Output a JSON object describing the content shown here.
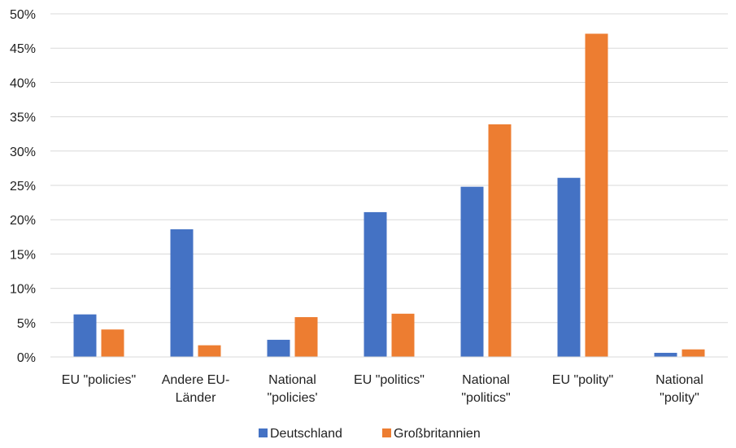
{
  "chart_data": {
    "type": "bar",
    "categories": [
      [
        "EU \"policies\""
      ],
      [
        "Andere EU-",
        "Länder"
      ],
      [
        "National",
        "\"policies'"
      ],
      [
        "EU \"politics\""
      ],
      [
        "National",
        "\"politics\""
      ],
      [
        "EU \"polity\""
      ],
      [
        "National",
        "\"polity\""
      ]
    ],
    "series": [
      {
        "name": "Deutschland",
        "color": "#4472C4",
        "values": [
          6.2,
          18.6,
          2.5,
          21.1,
          24.8,
          26.1,
          0.6
        ]
      },
      {
        "name": "Großbritannien",
        "color": "#ED7D31",
        "values": [
          4.0,
          1.7,
          5.8,
          6.3,
          33.9,
          47.1,
          1.1
        ]
      }
    ],
    "ylim": [
      0,
      50
    ],
    "yticks": [
      0,
      5,
      10,
      15,
      20,
      25,
      30,
      35,
      40,
      45,
      50
    ],
    "ytick_suffix": "%",
    "grid": true,
    "legend_position": "bottom",
    "title": "",
    "xlabel": "",
    "ylabel": ""
  }
}
